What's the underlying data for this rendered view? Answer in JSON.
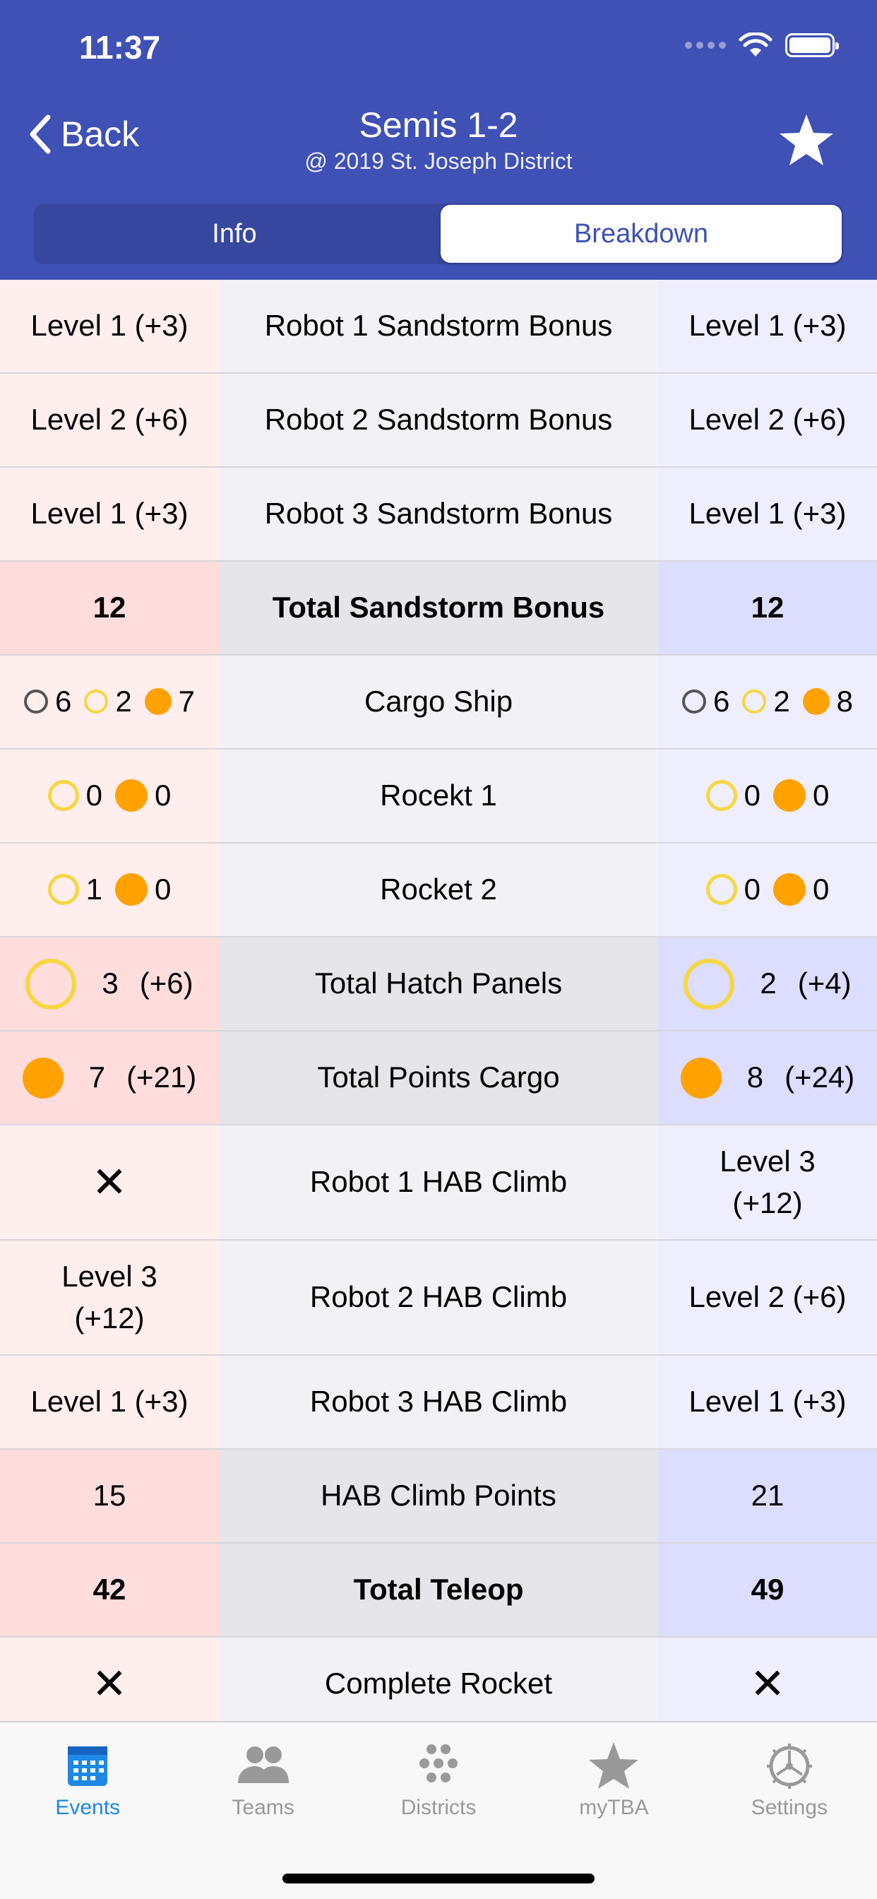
{
  "status_bar": {
    "time": "11:37"
  },
  "nav": {
    "back_label": "Back",
    "title": "Semis 1-2",
    "subtitle": "@ 2019 St. Joseph District"
  },
  "segments": [
    {
      "label": "Info",
      "active": false
    },
    {
      "label": "Breakdown",
      "active": true
    }
  ],
  "colors": {
    "header": "#3f51b5",
    "accent": "#1e88e5",
    "hatch": "#f5d742",
    "cargo": "#ffa200"
  },
  "rows": {
    "r1": {
      "red": "Level 1 (+3)",
      "label": "Robot 1 Sandstorm Bonus",
      "blue": "Level 1 (+3)"
    },
    "r2": {
      "red": "Level 2 (+6)",
      "label": "Robot 2 Sandstorm Bonus",
      "blue": "Level 2 (+6)"
    },
    "r3": {
      "red": "Level 1 (+3)",
      "label": "Robot 3 Sandstorm Bonus",
      "blue": "Level 1 (+3)"
    },
    "r4": {
      "red": "12",
      "label": "Total Sandstorm Bonus",
      "blue": "12"
    },
    "cargo_ship": {
      "label": "Cargo Ship",
      "red": {
        "null_panels": "6",
        "hatch": "2",
        "cargo": "7"
      },
      "blue": {
        "null_panels": "6",
        "hatch": "2",
        "cargo": "8"
      }
    },
    "rocket1": {
      "label": "Rocekt 1",
      "red": {
        "hatch": "0",
        "cargo": "0"
      },
      "blue": {
        "hatch": "0",
        "cargo": "0"
      }
    },
    "rocket2": {
      "label": "Rocket 2",
      "red": {
        "hatch": "1",
        "cargo": "0"
      },
      "blue": {
        "hatch": "0",
        "cargo": "0"
      }
    },
    "hatch_total": {
      "label": "Total Hatch Panels",
      "red": {
        "count": "3",
        "points": "(+6)"
      },
      "blue": {
        "count": "2",
        "points": "(+4)"
      }
    },
    "cargo_total": {
      "label": "Total Points Cargo",
      "red": {
        "count": "7",
        "points": "(+21)"
      },
      "blue": {
        "count": "8",
        "points": "(+24)"
      }
    },
    "hab1": {
      "red": "✕",
      "label": "Robot 1 HAB Climb",
      "blue_l1": "Level 3",
      "blue_l2": "(+12)"
    },
    "hab2": {
      "red_l1": "Level 3",
      "red_l2": "(+12)",
      "label": "Robot 2 HAB Climb",
      "blue": "Level 2 (+6)"
    },
    "hab3": {
      "red": "Level 1 (+3)",
      "label": "Robot 3 HAB Climb",
      "blue": "Level 1 (+3)"
    },
    "hab_points": {
      "red": "15",
      "label": "HAB Climb Points",
      "blue": "21"
    },
    "teleop": {
      "red": "42",
      "label": "Total Teleop",
      "blue": "49"
    },
    "complete_rocket": {
      "red": "✕",
      "label": "Complete Rocket",
      "blue": "✕"
    }
  },
  "tabbar": [
    {
      "label": "Events",
      "icon": "calendar-icon",
      "active": true
    },
    {
      "label": "Teams",
      "icon": "people-icon",
      "active": false
    },
    {
      "label": "Districts",
      "icon": "dots-icon",
      "active": false
    },
    {
      "label": "myTBA",
      "icon": "star-icon",
      "active": false
    },
    {
      "label": "Settings",
      "icon": "gear-icon",
      "active": false
    }
  ]
}
